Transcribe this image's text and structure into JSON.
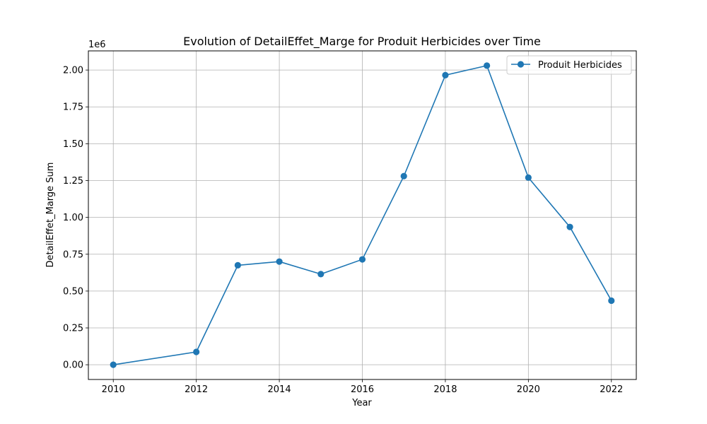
{
  "chart_data": {
    "type": "line",
    "title": "Evolution of DetailEffet_Marge for Produit Herbicides over Time",
    "xlabel": "Year",
    "ylabel": "DetailEffet_Marge Sum",
    "y_offset_label": "1e6",
    "xlim": [
      2009.4,
      2022.6
    ],
    "ylim": [
      -0.1,
      2.13
    ],
    "xticks": [
      2010,
      2012,
      2014,
      2016,
      2018,
      2020,
      2022
    ],
    "yticks": [
      0.0,
      0.25,
      0.5,
      0.75,
      1.0,
      1.25,
      1.5,
      1.75,
      2.0
    ],
    "ytick_labels": [
      "0.00",
      "0.25",
      "0.50",
      "0.75",
      "1.00",
      "1.25",
      "1.50",
      "1.75",
      "2.00"
    ],
    "grid": true,
    "legend_position": "top-right",
    "series": [
      {
        "name": "Produit Herbicides",
        "color": "#1f77b4",
        "marker": "circle",
        "x": [
          2010,
          2012,
          2013,
          2014,
          2015,
          2016,
          2017,
          2018,
          2019,
          2020,
          2021,
          2022
        ],
        "y": [
          0.0,
          0.087,
          0.675,
          0.7,
          0.615,
          0.715,
          1.28,
          1.965,
          2.03,
          1.27,
          0.935,
          0.435
        ]
      }
    ]
  }
}
